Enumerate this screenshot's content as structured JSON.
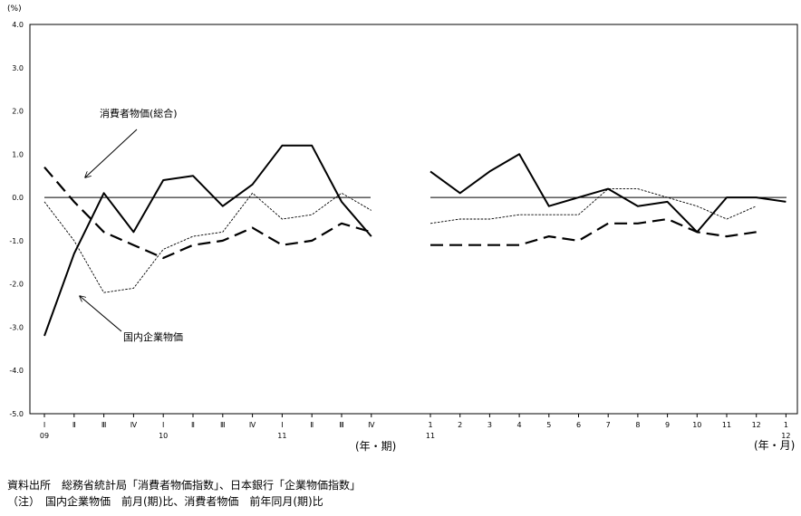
{
  "chart_data": {
    "type": "line",
    "y_unit_label": "(%)",
    "ylim": [
      -5.0,
      4.0
    ],
    "y_ticks": [
      "4.0",
      "3.0",
      "2.0",
      "1.0",
      "0.0",
      "-1.0",
      "-2.0",
      "-3.0",
      "-4.0",
      "-5.0"
    ],
    "grid": false,
    "panels": [
      {
        "x_unit_label": "(年・期)",
        "categories": [
          "Ⅰ",
          "Ⅱ",
          "Ⅲ",
          "Ⅳ",
          "Ⅰ",
          "Ⅱ",
          "Ⅲ",
          "Ⅳ",
          "Ⅰ",
          "Ⅱ",
          "Ⅲ",
          "Ⅳ"
        ],
        "year_labels": [
          {
            "index": 0,
            "text": "09"
          },
          {
            "index": 4,
            "text": "10"
          },
          {
            "index": 8,
            "text": "11"
          }
        ],
        "series": [
          {
            "style": "solid",
            "values": [
              -3.2,
              -1.3,
              0.1,
              -0.8,
              0.4,
              0.5,
              -0.2,
              0.3,
              1.2,
              1.2,
              -0.1,
              -0.9
            ]
          },
          {
            "style": "long-dash",
            "values": [
              0.7,
              -0.1,
              -0.8,
              -1.1,
              -1.4,
              -1.1,
              -1.0,
              -0.7,
              -1.1,
              -1.0,
              -0.6,
              -0.8
            ]
          },
          {
            "style": "dotted",
            "values": [
              -0.1,
              -1.0,
              -2.2,
              -2.1,
              -1.2,
              -0.9,
              -0.8,
              0.1,
              -0.5,
              -0.4,
              0.1,
              -0.3
            ]
          }
        ]
      },
      {
        "x_unit_label": "(年・月)",
        "categories": [
          "1",
          "2",
          "3",
          "4",
          "5",
          "6",
          "7",
          "8",
          "9",
          "10",
          "11",
          "12",
          "1"
        ],
        "year_labels": [
          {
            "index": 0,
            "text": "11"
          },
          {
            "index": 12,
            "text": "12"
          }
        ],
        "series": [
          {
            "style": "solid",
            "values": [
              0.6,
              0.1,
              0.6,
              1.0,
              -0.2,
              0.0,
              0.2,
              -0.2,
              -0.1,
              -0.8,
              0.0,
              0.0,
              -0.1
            ]
          },
          {
            "style": "long-dash",
            "values": [
              -1.1,
              -1.1,
              -1.1,
              -1.1,
              -0.9,
              -1.0,
              -0.6,
              -0.6,
              -0.5,
              -0.8,
              -0.9,
              -0.8,
              null
            ]
          },
          {
            "style": "dotted",
            "values": [
              -0.6,
              -0.5,
              -0.5,
              -0.4,
              -0.4,
              -0.4,
              0.2,
              0.2,
              0.0,
              -0.2,
              -0.5,
              -0.2,
              null
            ]
          }
        ]
      }
    ],
    "annotations": [
      {
        "text": "消費者物価(総合)",
        "target": "dotted"
      },
      {
        "text": "国内企業物価",
        "target": "solid"
      }
    ]
  },
  "source": {
    "line1": "資料出所　総務省統計局「消費者物価指数」、日本銀行「企業物価指数」",
    "line2": "（注）　国内企業物価　前月(期)比、消費者物価　前年同月(期)比"
  }
}
